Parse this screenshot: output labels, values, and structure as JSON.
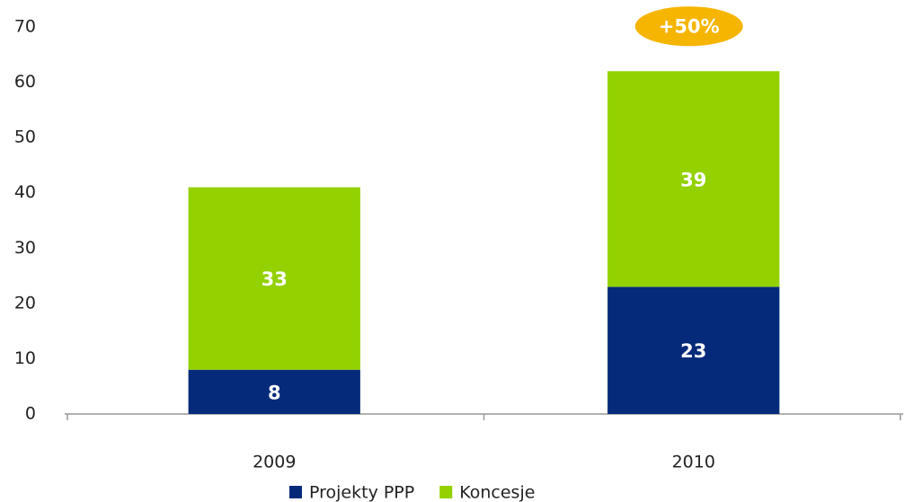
{
  "chart_data": {
    "type": "bar",
    "stacked": true,
    "categories": [
      "2009",
      "2010"
    ],
    "series": [
      {
        "name": "Projekty PPP",
        "color": "#062a7a",
        "values": [
          8,
          23
        ]
      },
      {
        "name": "Koncesje",
        "color": "#93d100",
        "values": [
          33,
          39
        ]
      }
    ],
    "ylim": [
      0,
      70
    ],
    "yticks": [
      0,
      10,
      20,
      30,
      40,
      50,
      60,
      70
    ],
    "grid": false,
    "annotation": "+50%",
    "annotation_color": "#f6b500",
    "legend": "bottom"
  }
}
